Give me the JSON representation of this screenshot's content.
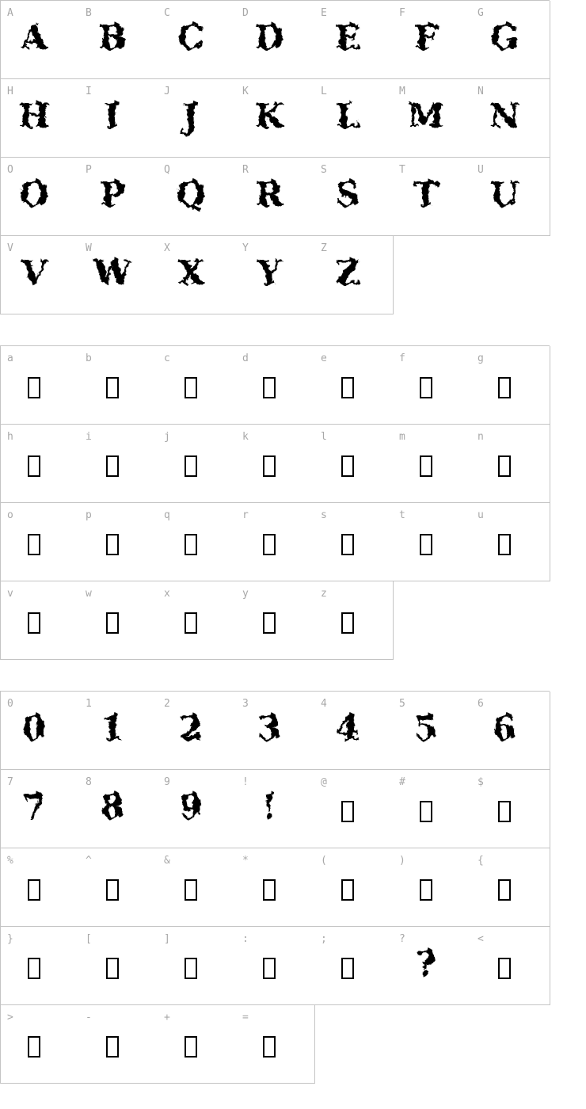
{
  "style": {
    "background": "#ffffff",
    "border_color": "#c4c4c4",
    "label_color": "#a8a8a8",
    "glyph_color": "#000000"
  },
  "character_map": {
    "tables": [
      {
        "name": "uppercase-letters",
        "rows": [
          [
            {
              "label": "A",
              "glyph": "A",
              "missing": false
            },
            {
              "label": "B",
              "glyph": "B",
              "missing": false
            },
            {
              "label": "C",
              "glyph": "C",
              "missing": false
            },
            {
              "label": "D",
              "glyph": "D",
              "missing": false
            },
            {
              "label": "E",
              "glyph": "E",
              "missing": false
            },
            {
              "label": "F",
              "glyph": "F",
              "missing": false
            },
            {
              "label": "G",
              "glyph": "G",
              "missing": false
            }
          ],
          [
            {
              "label": "H",
              "glyph": "H",
              "missing": false
            },
            {
              "label": "I",
              "glyph": "I",
              "missing": false
            },
            {
              "label": "J",
              "glyph": "J",
              "missing": false
            },
            {
              "label": "K",
              "glyph": "K",
              "missing": false
            },
            {
              "label": "L",
              "glyph": "L",
              "missing": false
            },
            {
              "label": "M",
              "glyph": "M",
              "missing": false
            },
            {
              "label": "N",
              "glyph": "N",
              "missing": false
            }
          ],
          [
            {
              "label": "O",
              "glyph": "O",
              "missing": false
            },
            {
              "label": "P",
              "glyph": "P",
              "missing": false
            },
            {
              "label": "Q",
              "glyph": "Q",
              "missing": false
            },
            {
              "label": "R",
              "glyph": "R",
              "missing": false
            },
            {
              "label": "S",
              "glyph": "S",
              "missing": false
            },
            {
              "label": "T",
              "glyph": "T",
              "missing": false
            },
            {
              "label": "U",
              "glyph": "U",
              "missing": false
            }
          ],
          [
            {
              "label": "V",
              "glyph": "V",
              "missing": false
            },
            {
              "label": "W",
              "glyph": "W",
              "missing": false
            },
            {
              "label": "X",
              "glyph": "X",
              "missing": false
            },
            {
              "label": "Y",
              "glyph": "Y",
              "missing": false
            },
            {
              "label": "Z",
              "glyph": "Z",
              "missing": false
            }
          ]
        ]
      },
      {
        "name": "lowercase-letters",
        "rows": [
          [
            {
              "label": "a",
              "glyph": null,
              "missing": true
            },
            {
              "label": "b",
              "glyph": null,
              "missing": true
            },
            {
              "label": "c",
              "glyph": null,
              "missing": true
            },
            {
              "label": "d",
              "glyph": null,
              "missing": true
            },
            {
              "label": "e",
              "glyph": null,
              "missing": true
            },
            {
              "label": "f",
              "glyph": null,
              "missing": true
            },
            {
              "label": "g",
              "glyph": null,
              "missing": true
            }
          ],
          [
            {
              "label": "h",
              "glyph": null,
              "missing": true
            },
            {
              "label": "i",
              "glyph": null,
              "missing": true
            },
            {
              "label": "j",
              "glyph": null,
              "missing": true
            },
            {
              "label": "k",
              "glyph": null,
              "missing": true
            },
            {
              "label": "l",
              "glyph": null,
              "missing": true
            },
            {
              "label": "m",
              "glyph": null,
              "missing": true
            },
            {
              "label": "n",
              "glyph": null,
              "missing": true
            }
          ],
          [
            {
              "label": "o",
              "glyph": null,
              "missing": true
            },
            {
              "label": "p",
              "glyph": null,
              "missing": true
            },
            {
              "label": "q",
              "glyph": null,
              "missing": true
            },
            {
              "label": "r",
              "glyph": null,
              "missing": true
            },
            {
              "label": "s",
              "glyph": null,
              "missing": true
            },
            {
              "label": "t",
              "glyph": null,
              "missing": true
            },
            {
              "label": "u",
              "glyph": null,
              "missing": true
            }
          ],
          [
            {
              "label": "v",
              "glyph": null,
              "missing": true
            },
            {
              "label": "w",
              "glyph": null,
              "missing": true
            },
            {
              "label": "x",
              "glyph": null,
              "missing": true
            },
            {
              "label": "y",
              "glyph": null,
              "missing": true
            },
            {
              "label": "z",
              "glyph": null,
              "missing": true
            }
          ]
        ]
      },
      {
        "name": "digits-and-punctuation",
        "rows": [
          [
            {
              "label": "0",
              "glyph": "0",
              "missing": false
            },
            {
              "label": "1",
              "glyph": "1",
              "missing": false
            },
            {
              "label": "2",
              "glyph": "2",
              "missing": false
            },
            {
              "label": "3",
              "glyph": "3",
              "missing": false
            },
            {
              "label": "4",
              "glyph": "4",
              "missing": false
            },
            {
              "label": "5",
              "glyph": "5",
              "missing": false
            },
            {
              "label": "6",
              "glyph": "6",
              "missing": false
            }
          ],
          [
            {
              "label": "7",
              "glyph": "7",
              "missing": false
            },
            {
              "label": "8",
              "glyph": "8",
              "missing": false
            },
            {
              "label": "9",
              "glyph": "9",
              "missing": false
            },
            {
              "label": "!",
              "glyph": "!",
              "missing": false
            },
            {
              "label": "@",
              "glyph": null,
              "missing": true
            },
            {
              "label": "#",
              "glyph": null,
              "missing": true
            },
            {
              "label": "$",
              "glyph": null,
              "missing": true
            }
          ],
          [
            {
              "label": "%",
              "glyph": null,
              "missing": true
            },
            {
              "label": "^",
              "glyph": null,
              "missing": true
            },
            {
              "label": "&",
              "glyph": null,
              "missing": true
            },
            {
              "label": "*",
              "glyph": null,
              "missing": true
            },
            {
              "label": "(",
              "glyph": null,
              "missing": true
            },
            {
              "label": ")",
              "glyph": null,
              "missing": true
            },
            {
              "label": "{",
              "glyph": null,
              "missing": true
            }
          ],
          [
            {
              "label": "}",
              "glyph": null,
              "missing": true
            },
            {
              "label": "[",
              "glyph": null,
              "missing": true
            },
            {
              "label": "]",
              "glyph": null,
              "missing": true
            },
            {
              "label": ":",
              "glyph": null,
              "missing": true
            },
            {
              "label": ";",
              "glyph": null,
              "missing": true
            },
            {
              "label": "?",
              "glyph": "?",
              "missing": false
            },
            {
              "label": "<",
              "glyph": null,
              "missing": true
            }
          ],
          [
            {
              "label": ">",
              "glyph": null,
              "missing": true
            },
            {
              "label": "-",
              "glyph": null,
              "missing": true
            },
            {
              "label": "+",
              "glyph": null,
              "missing": true
            },
            {
              "label": "=",
              "glyph": null,
              "missing": true
            }
          ]
        ]
      }
    ]
  }
}
